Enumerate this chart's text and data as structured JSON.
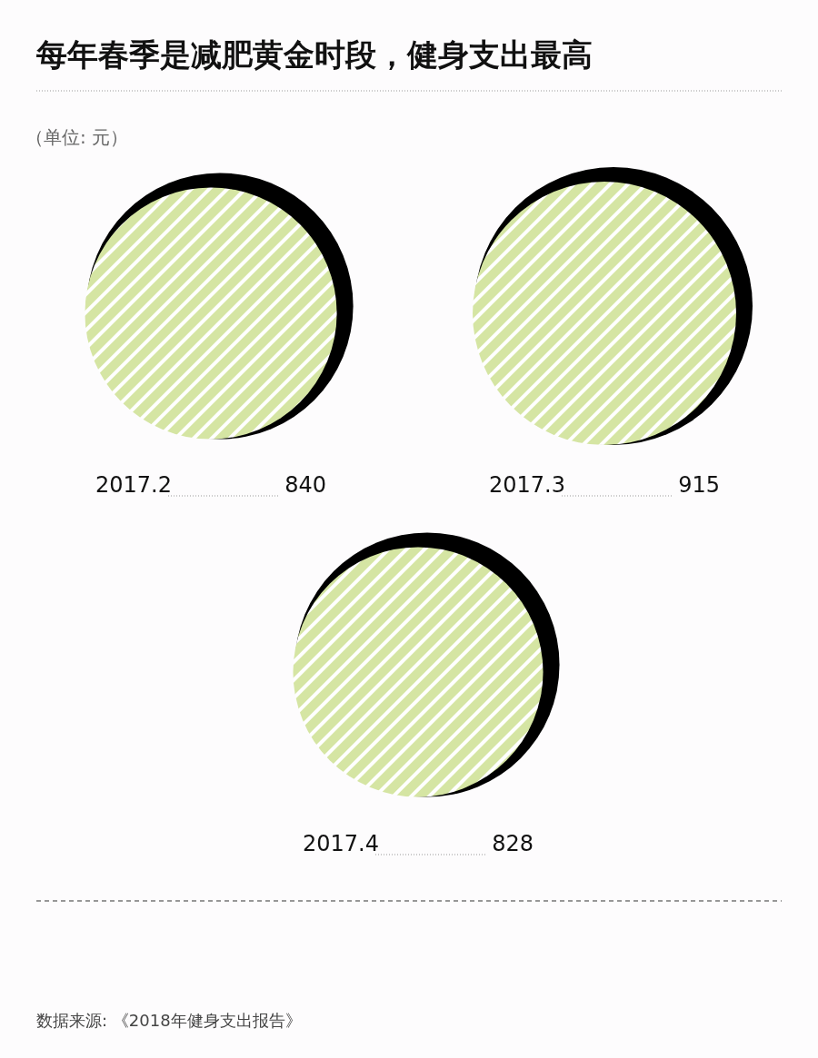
{
  "chart_data": {
    "type": "other",
    "title": "每年春季是减肥黄金时段，健身支出最高",
    "subtitle": "（单位: 元）",
    "categories": [
      "2017.2",
      "2017.3",
      "2017.4"
    ],
    "values": [
      840,
      915,
      828
    ],
    "color": "#d5e5a3",
    "data_labels": true,
    "annotations": [
      "数据来源: 《2018年健身支出报告》"
    ]
  }
}
